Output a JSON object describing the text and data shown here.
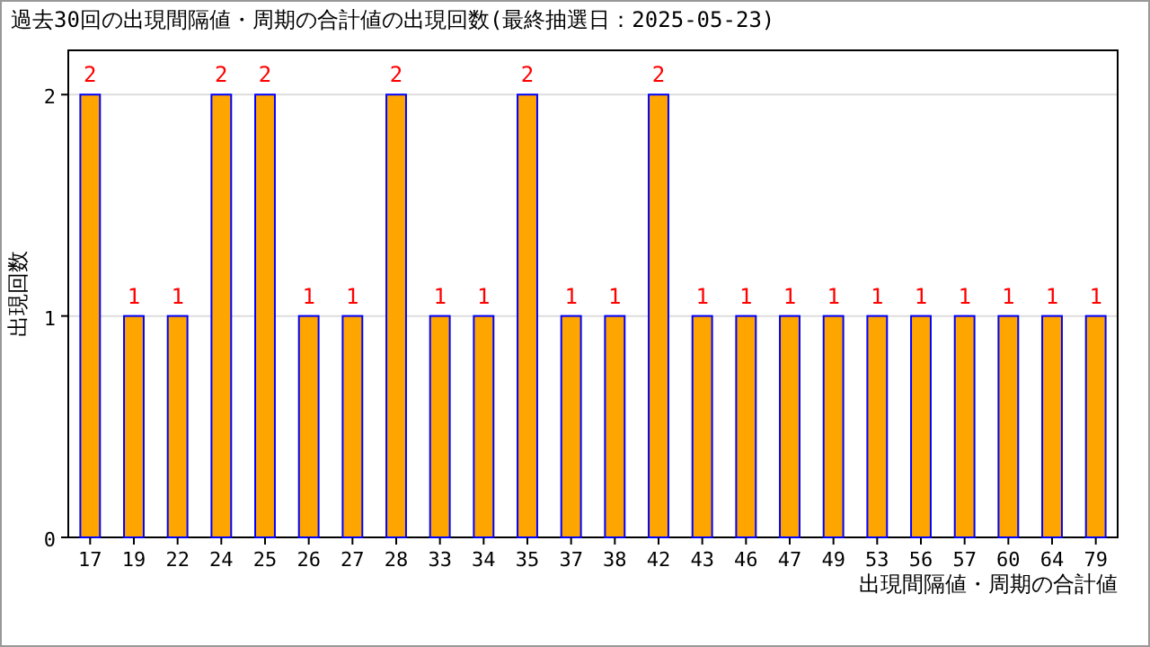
{
  "chart_data": {
    "type": "bar",
    "title": "過去30回の出現間隔値・周期の合計値の出現回数(最終抽選日：2025-05-23)",
    "xlabel": "出現間隔値・周期の合計値",
    "ylabel": "出現回数",
    "categories": [
      "17",
      "19",
      "22",
      "24",
      "25",
      "26",
      "27",
      "28",
      "33",
      "34",
      "35",
      "37",
      "38",
      "42",
      "43",
      "46",
      "47",
      "49",
      "53",
      "56",
      "57",
      "60",
      "64",
      "79"
    ],
    "values": [
      2,
      1,
      1,
      2,
      2,
      1,
      1,
      2,
      1,
      1,
      2,
      1,
      1,
      2,
      1,
      1,
      1,
      1,
      1,
      1,
      1,
      1,
      1,
      1
    ],
    "color": "#ffa500",
    "ylim": [
      0,
      2.2
    ],
    "yticks": [
      0,
      1,
      2
    ],
    "grid": "y",
    "data_labels": true
  }
}
